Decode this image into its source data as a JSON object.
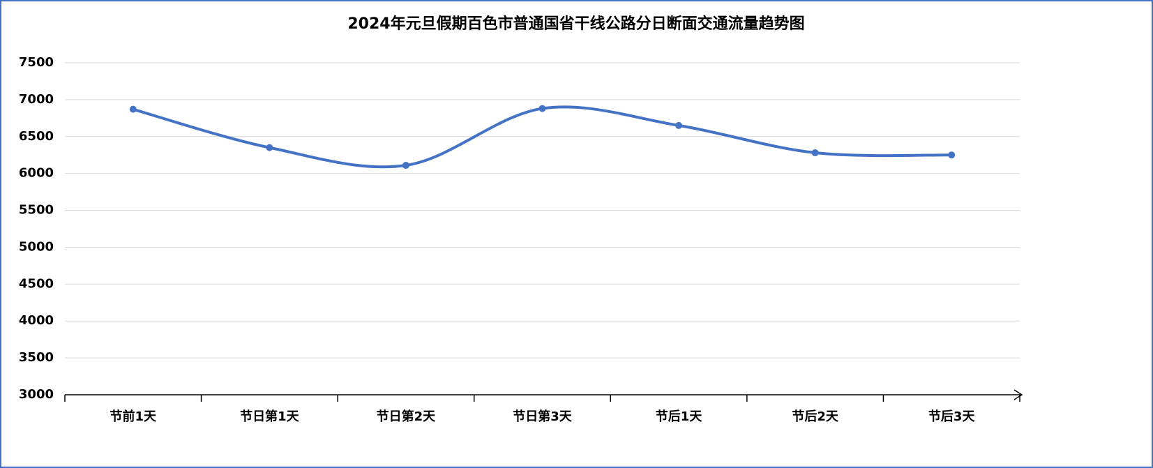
{
  "chart_data": {
    "type": "line",
    "title": "2024年元旦假期百色市普通国省干线公路分日断面交通流量趋势图",
    "categories": [
      "节前1天",
      "节日第1天",
      "节日第2天",
      "节日第3天",
      "节后1天",
      "节后2天",
      "节后3天"
    ],
    "series": [
      {
        "color": "#4472c4",
        "values": [
          6870,
          6350,
          6110,
          6880,
          6650,
          6280,
          6250
        ]
      }
    ],
    "ylim": [
      3000,
      7500
    ],
    "yticks": [
      3000,
      3500,
      4000,
      4500,
      5000,
      5500,
      6000,
      6500,
      7000,
      7500
    ],
    "grid": true,
    "smooth": true
  }
}
